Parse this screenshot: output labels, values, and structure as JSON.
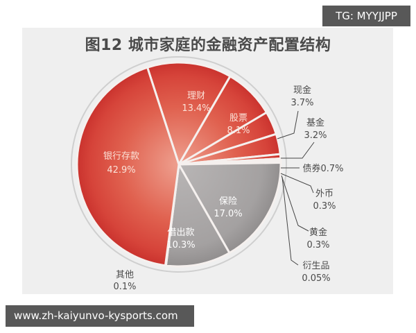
{
  "watermark_top": "TG: MYYJJPP",
  "watermark_bottom": "www.zh-kaiyunvo-kysports.com",
  "chart_data": {
    "type": "pie",
    "title": "图12 城市家庭的金融资产配置结构",
    "slices": [
      {
        "name": "理财",
        "value": 13.4,
        "label": "13.4%",
        "color": "#e05a50"
      },
      {
        "name": "股票",
        "value": 8.1,
        "label": "8.1%",
        "color": "#e04a45"
      },
      {
        "name": "现金",
        "value": 3.7,
        "label": "3.7%",
        "color": "#dd3b37"
      },
      {
        "name": "基金",
        "value": 3.2,
        "label": "3.2%",
        "color": "#dd3b37"
      },
      {
        "name": "债券",
        "value": 0.7,
        "label": "0.7%",
        "color": "#d93a36"
      },
      {
        "name": "外币",
        "value": 0.3,
        "label": "0.3%",
        "color": "#9a9a9a"
      },
      {
        "name": "黄金",
        "value": 0.3,
        "label": "0.3%",
        "color": "#9a9a9a"
      },
      {
        "name": "衍生品",
        "value": 0.05,
        "label": "0.05%",
        "color": "#9a9a9a"
      },
      {
        "name": "保险",
        "value": 17.0,
        "label": "17.0%",
        "color": "#a9a6a6"
      },
      {
        "name": "借出款",
        "value": 10.3,
        "label": "10.3%",
        "color": "#a09d9d"
      },
      {
        "name": "其他",
        "value": 0.1,
        "label": "0.1%",
        "color": "#9a9a9a"
      },
      {
        "name": "银行存款",
        "value": 42.9,
        "label": "42.9%",
        "color": "#d9473f"
      }
    ],
    "legend": "none (callout labels)",
    "units": "%"
  },
  "labels": {
    "licai": {
      "name": "理财",
      "pct": "13.4%"
    },
    "gupiao": {
      "name": "股票",
      "pct": "8.1%"
    },
    "xianjin": {
      "name": "现金",
      "pct": "3.7%"
    },
    "jijin": {
      "name": "基金",
      "pct": "3.2%"
    },
    "zhaiquan": {
      "text": "债券0.7%"
    },
    "waibi": {
      "name": "外币",
      "pct": "0.3%"
    },
    "huangjin": {
      "name": "黄金",
      "pct": "0.3%"
    },
    "yanshengpin": {
      "name": "衍生品",
      "pct": "0.05%"
    },
    "baoxian": {
      "name": "保险",
      "pct": "17.0%"
    },
    "jiechukuan": {
      "name": "借出款",
      "pct": "10.3%"
    },
    "qita": {
      "name": "其他",
      "pct": "0.1%"
    },
    "yinhang": {
      "name": "银行存款",
      "pct": "42.9%"
    }
  }
}
